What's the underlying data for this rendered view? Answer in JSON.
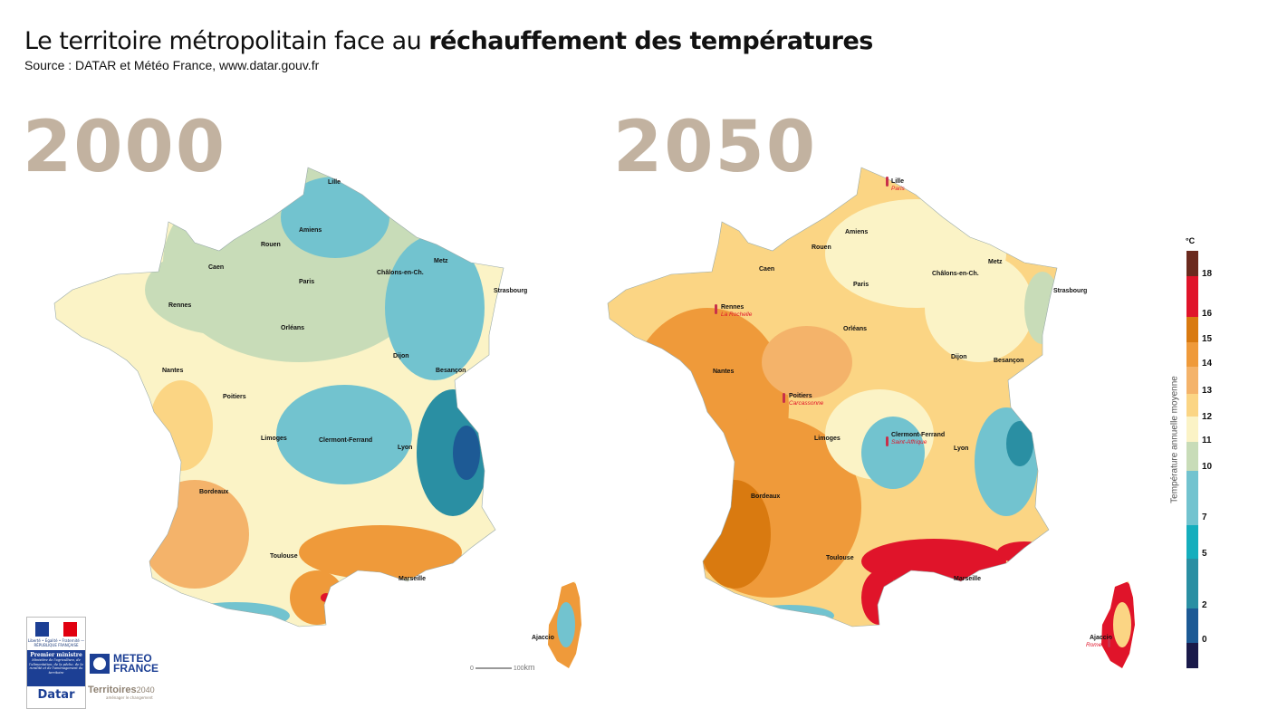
{
  "header": {
    "title_regular": "Le territoire métropolitain face au ",
    "title_bold": "réchauffement des températures",
    "source": "Source : DATAR et Météo France, www.datar.gouv.fr"
  },
  "maps": [
    {
      "year": "2000",
      "cities": [
        "Lille",
        "Amiens",
        "Rouen",
        "Caen",
        "Paris",
        "Châlons-en-Ch.",
        "Metz",
        "Strasbourg",
        "Rennes",
        "Orléans",
        "Dijon",
        "Besançon",
        "Nantes",
        "Poitiers",
        "Limoges",
        "Clermont-Ferrand",
        "Lyon",
        "Bordeaux",
        "Toulouse",
        "Marseille",
        "Ajaccio"
      ],
      "scale_bar": {
        "start": "0",
        "end": "100",
        "unit": "km"
      }
    },
    {
      "year": "2050",
      "cities": [
        "Lille",
        "Amiens",
        "Rouen",
        "Caen",
        "Paris",
        "Châlons-en-Ch.",
        "Metz",
        "Strasbourg",
        "Rennes",
        "Orléans",
        "Dijon",
        "Besançon",
        "Nantes",
        "Poitiers",
        "Limoges",
        "Clermont-Ferrand",
        "Lyon",
        "Bordeaux",
        "Toulouse",
        "Marseille",
        "Ajaccio"
      ],
      "analog_cities": {
        "Lille": "Paris",
        "Rennes": "La Rochelle",
        "Poitiers": "Carcassonne",
        "Clermont-Ferrand": "Saint-Affrique",
        "Ajaccio": "Rome"
      }
    }
  ],
  "legend": {
    "unit": "°C",
    "title": "Température annuelle moyenne",
    "ticks": [
      "18",
      "16",
      "15",
      "14",
      "13",
      "12",
      "11",
      "10",
      "7",
      "5",
      "2",
      "0"
    ],
    "bands": [
      {
        "range": ">18",
        "color": "#6b2a1e"
      },
      {
        "range": "16-18",
        "color": "#e0142a"
      },
      {
        "range": "15-16",
        "color": "#d97a10"
      },
      {
        "range": "14-15",
        "color": "#ef9a3a"
      },
      {
        "range": "13-14",
        "color": "#f4b36a"
      },
      {
        "range": "12-13",
        "color": "#fbd584"
      },
      {
        "range": "11-12",
        "color": "#fbf3c6"
      },
      {
        "range": "10-11",
        "color": "#c8dcb8"
      },
      {
        "range": "7-10",
        "color": "#72c3cf"
      },
      {
        "range": "5-7",
        "color": "#15aebd"
      },
      {
        "range": "2-5",
        "color": "#2a8fa3"
      },
      {
        "range": "0-2",
        "color": "#1d5a95"
      },
      {
        "range": "<0",
        "color": "#1a1a4a"
      }
    ]
  },
  "logos": {
    "republique": "Liberté • Égalité • Fraternité — RÉPUBLIQUE FRANÇAISE",
    "premier_ministre": "Premier ministre",
    "ministere": "Ministère de l'agriculture, de l'alimentation, de la pêche, de la ruralité et de l'aménagement du territoire",
    "datar": "Datar",
    "meteo_line1": "METEO",
    "meteo_line2": "FRANCE",
    "territoires": "Territoires",
    "territoires_year": "2040",
    "territoires_sub": "aménager le changement"
  }
}
